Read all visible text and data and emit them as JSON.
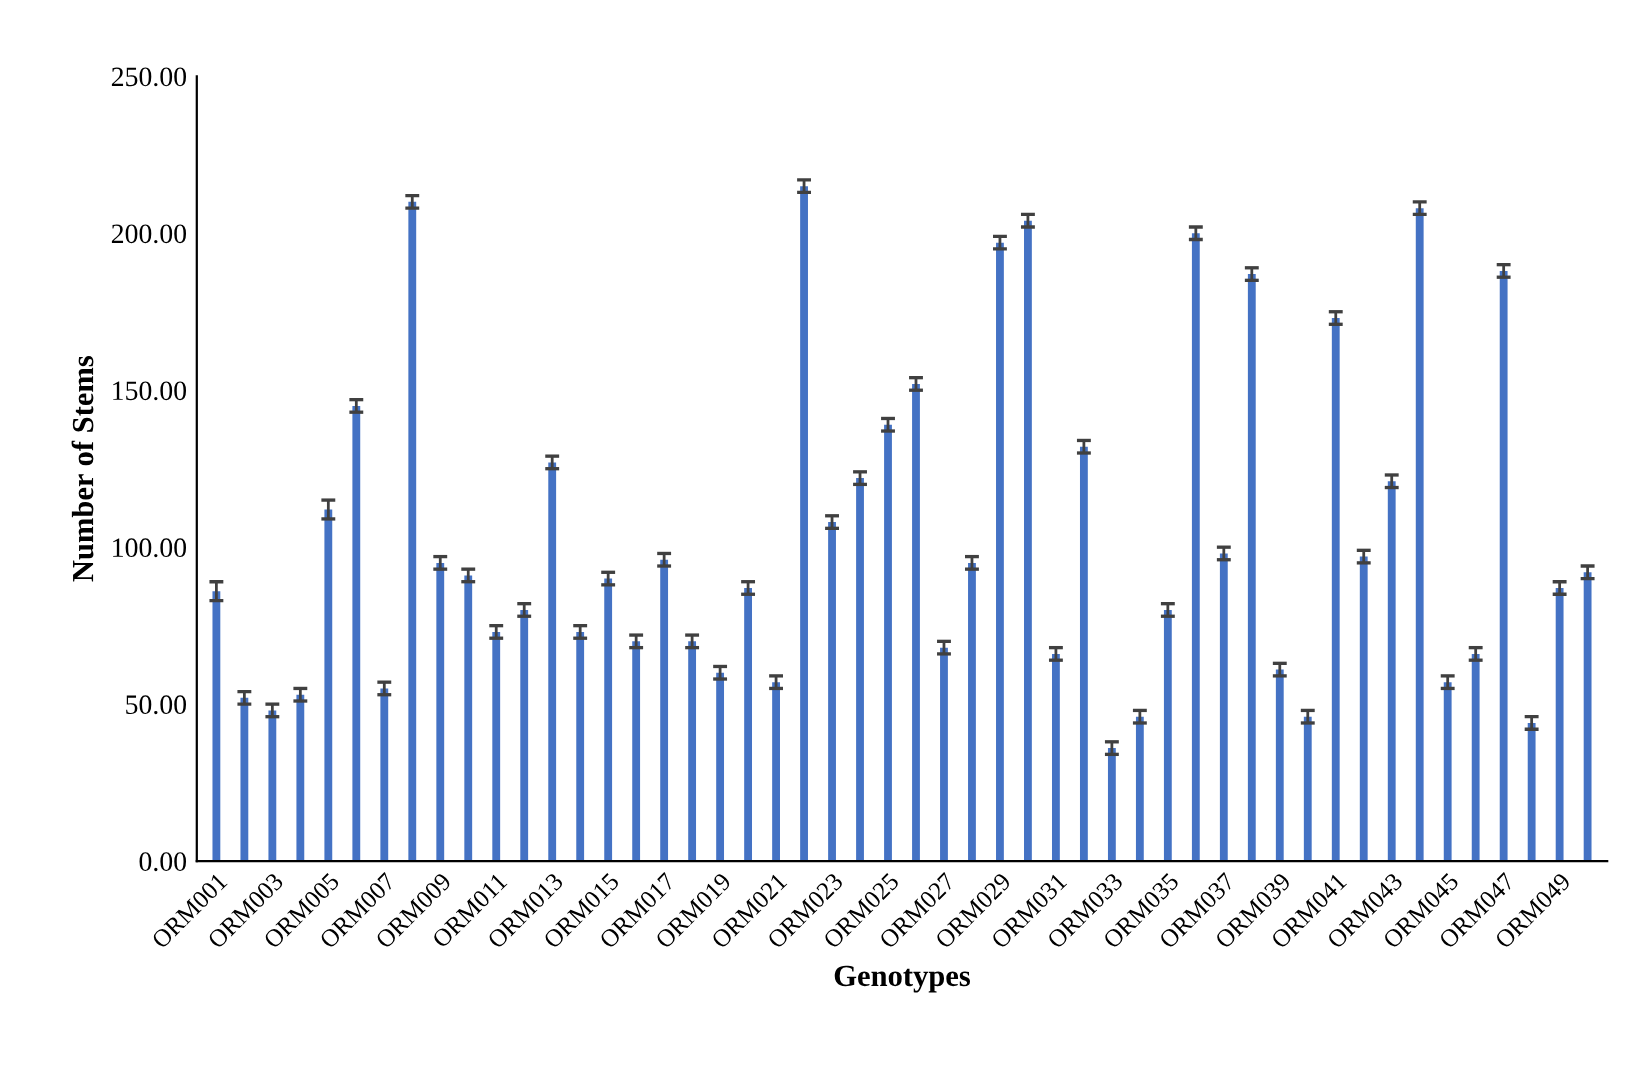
{
  "chart_data": {
    "type": "bar",
    "xlabel": "Genotypes",
    "ylabel": "Number of Stems",
    "categories": [
      "ORM001",
      null,
      "ORM003",
      null,
      "ORM005",
      null,
      "ORM007",
      null,
      "ORM009",
      null,
      "ORM011",
      null,
      "ORM013",
      null,
      "ORM015",
      null,
      "ORM017",
      null,
      "ORM019",
      null,
      "ORM021",
      null,
      "ORM023",
      null,
      "ORM025",
      null,
      "ORM027",
      null,
      "ORM029",
      null,
      "ORM031",
      null,
      "ORM033",
      null,
      "ORM035",
      null,
      "ORM037",
      null,
      "ORM039",
      null,
      "ORM041",
      null,
      "ORM043",
      null,
      "ORM045",
      null,
      "ORM047",
      null,
      "ORM049",
      null
    ],
    "values": [
      86,
      52,
      48,
      53,
      112,
      145,
      55,
      210,
      95,
      91,
      73,
      80,
      127,
      73,
      90,
      70,
      96,
      70,
      60,
      87,
      57,
      215,
      108,
      122,
      139,
      152,
      68,
      95,
      197,
      204,
      66,
      132,
      36,
      46,
      80,
      200,
      98,
      187,
      61,
      46,
      173,
      97,
      121,
      208,
      57,
      66,
      188,
      44,
      87,
      92
    ],
    "errors": [
      3,
      2,
      2,
      2,
      3,
      2,
      2,
      2,
      2,
      2,
      2,
      2,
      2,
      2,
      2,
      2,
      2,
      2,
      2,
      2,
      2,
      2,
      2,
      2,
      2,
      2,
      2,
      2,
      2,
      2,
      2,
      2,
      2,
      2,
      2,
      2,
      2,
      2,
      2,
      2,
      2,
      2,
      2,
      2,
      2,
      2,
      2,
      2,
      2,
      2
    ],
    "color": "#4472c4",
    "ylim": [
      0,
      250
    ],
    "yticks": [
      {
        "value": 0,
        "label": "0.00"
      },
      {
        "value": 50,
        "label": "50.00"
      },
      {
        "value": 100,
        "label": "100.00"
      },
      {
        "value": 150,
        "label": "150.00"
      },
      {
        "value": 200,
        "label": "200.00"
      },
      {
        "value": 250,
        "label": "250.00"
      }
    ],
    "grid": false,
    "legend": false
  }
}
